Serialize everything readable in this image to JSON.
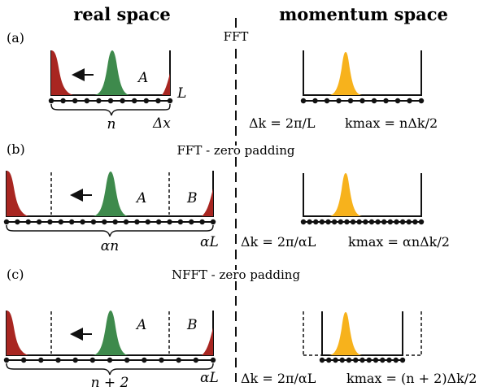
{
  "headers": {
    "real_space": "real space",
    "momentum_space": "momentum space"
  },
  "panels": {
    "a": {
      "label": "(a)",
      "caption": "FFT",
      "letter_A": "A",
      "length_label": "L",
      "count_label": "n",
      "spacing_label": "Δx",
      "dk_formula": "Δk = 2π/L",
      "kmax_formula": "kmax = nΔk/2"
    },
    "b": {
      "label": "(b)",
      "caption": "FFT - zero padding",
      "letter_A": "A",
      "letter_B": "B",
      "count_label": "αn",
      "length_label": "αL",
      "dk_formula": "Δk = 2π/αL",
      "kmax_formula": "kmax = αnΔk/2"
    },
    "c": {
      "label": "(c)",
      "caption": "NFFT - zero padding",
      "letter_A": "A",
      "letter_B": "B",
      "count_label": "n + 2",
      "length_label": "αL",
      "dk_formula": "Δk = 2π/αL",
      "kmax_formula": "kmax = (n + 2)Δk/2"
    }
  },
  "colors": {
    "red_peak": "#a82621",
    "green_peak": "#3e8a4c",
    "yellow_peak": "#f7b21c",
    "line": "#111111"
  }
}
